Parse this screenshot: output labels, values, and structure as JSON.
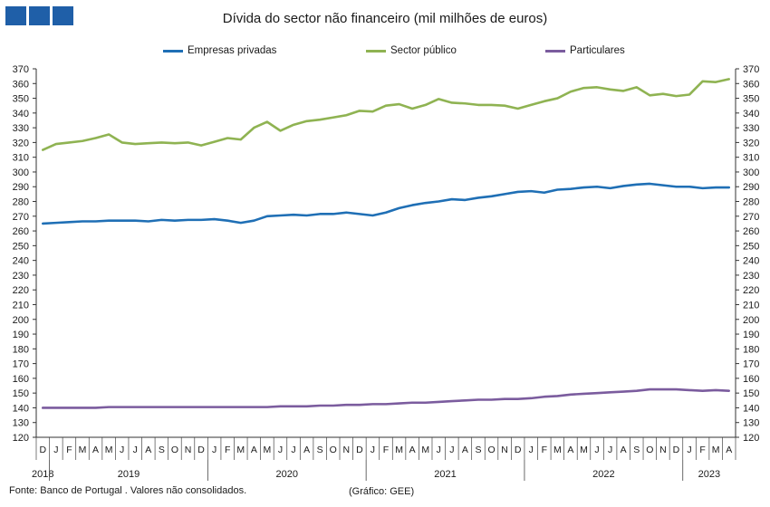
{
  "header": {
    "logo_icon": "banco-de-portugal-logo-icon"
  },
  "chart_data": {
    "type": "line",
    "title": "Dívida do sector não financeiro (mil milhões de euros)",
    "ylim": [
      120,
      370
    ],
    "y_ticks": [
      120,
      130,
      140,
      150,
      160,
      170,
      180,
      190,
      200,
      210,
      220,
      230,
      240,
      250,
      260,
      270,
      280,
      290,
      300,
      310,
      320,
      330,
      340,
      350,
      360,
      370
    ],
    "y_axis_right": true,
    "grid": false,
    "legend_position": "top",
    "x_month_labels": [
      "D",
      "J",
      "F",
      "M",
      "A",
      "M",
      "J",
      "J",
      "A",
      "S",
      "O",
      "N",
      "D",
      "J",
      "F",
      "M",
      "A",
      "M",
      "J",
      "J",
      "A",
      "S",
      "O",
      "N",
      "D",
      "J",
      "F",
      "M",
      "A",
      "M",
      "J",
      "J",
      "A",
      "S",
      "O",
      "N",
      "D",
      "J",
      "F",
      "M",
      "A",
      "M",
      "J",
      "J",
      "A",
      "S",
      "O",
      "N",
      "D",
      "J",
      "F",
      "M",
      "A"
    ],
    "x_year_groups": [
      {
        "label": "2018",
        "start": 0,
        "count": 1
      },
      {
        "label": "2019",
        "start": 1,
        "count": 12
      },
      {
        "label": "2020",
        "start": 13,
        "count": 12
      },
      {
        "label": "2021",
        "start": 25,
        "count": 12
      },
      {
        "label": "2022",
        "start": 37,
        "count": 12
      },
      {
        "label": "2023",
        "start": 49,
        "count": 4
      }
    ],
    "series": [
      {
        "name": "Empresas privadas",
        "color": "#1f6fb5",
        "values": [
          265,
          265.5,
          266,
          266.5,
          266.5,
          267,
          267,
          267,
          266.5,
          267.5,
          267,
          267.5,
          267.5,
          268,
          267,
          265.5,
          267,
          270,
          270.5,
          271,
          270.5,
          271.5,
          271.5,
          272.5,
          271.5,
          270.5,
          272.5,
          275.5,
          277.5,
          279,
          280,
          281.5,
          281,
          282.5,
          283.5,
          285,
          286.5,
          287,
          286,
          288,
          288.5,
          289.5,
          290,
          289,
          290.5,
          291.5,
          292,
          291,
          290,
          290,
          289,
          289.5,
          289.5
        ]
      },
      {
        "name": "Sector público",
        "color": "#8fb352",
        "values": [
          315,
          319,
          320,
          321,
          323,
          325.5,
          320,
          319,
          319.5,
          320,
          319.5,
          320,
          318,
          320.5,
          323,
          322,
          330,
          334,
          328,
          332,
          334.5,
          335.5,
          337,
          338.5,
          341.5,
          341,
          345,
          346,
          343,
          345.5,
          349.5,
          347,
          346.5,
          345.5,
          345.5,
          345,
          343,
          345.5,
          348,
          350,
          354.5,
          357,
          357.5,
          356,
          355,
          357.5,
          352,
          353,
          351.5,
          352.5,
          361.5,
          361,
          363
        ]
      },
      {
        "name": "Particulares",
        "color": "#7b5c9e",
        "values": [
          140,
          140,
          140,
          140,
          140,
          140.5,
          140.5,
          140.5,
          140.5,
          140.5,
          140.5,
          140.5,
          140.5,
          140.5,
          140.5,
          140.5,
          140.5,
          140.5,
          141,
          141,
          141,
          141.5,
          141.5,
          142,
          142,
          142.5,
          142.5,
          143,
          143.5,
          143.5,
          144,
          144.5,
          145,
          145.5,
          145.5,
          146,
          146,
          146.5,
          147.5,
          148,
          149,
          149.5,
          150,
          150.5,
          151,
          151.5,
          152.5,
          152.5,
          152.5,
          152,
          151.5,
          152,
          151.5
        ]
      }
    ]
  },
  "footer": {
    "source": "Fonte: Banco de Portugal . Valores não consolidados.",
    "credit": "(Gráfico: GEE)"
  }
}
